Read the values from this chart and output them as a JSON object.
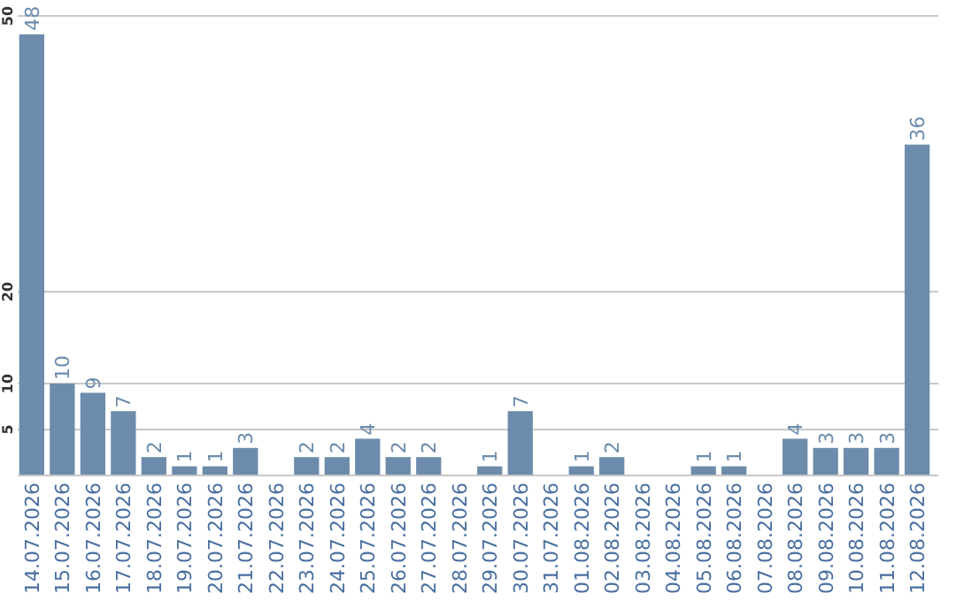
{
  "chart_data": {
    "type": "bar",
    "categories": [
      "14.07.2026",
      "15.07.2026",
      "16.07.2026",
      "17.07.2026",
      "18.07.2026",
      "19.07.2026",
      "20.07.2026",
      "21.07.2026",
      "22.07.2026",
      "23.07.2026",
      "24.07.2026",
      "25.07.2026",
      "26.07.2026",
      "27.07.2026",
      "28.07.2026",
      "29.07.2026",
      "30.07.2026",
      "31.07.2026",
      "01.08.2026",
      "02.08.2026",
      "03.08.2026",
      "04.08.2026",
      "05.08.2026",
      "06.08.2026",
      "07.08.2026",
      "08.08.2026",
      "09.08.2026",
      "10.08.2026",
      "11.08.2026",
      "12.08.2026"
    ],
    "values": [
      48,
      10,
      9,
      7,
      2,
      1,
      1,
      3,
      null,
      2,
      2,
      4,
      2,
      2,
      null,
      1,
      7,
      null,
      1,
      2,
      null,
      null,
      1,
      1,
      null,
      4,
      3,
      3,
      3,
      36
    ],
    "color": "#6d8cac",
    "ylim": [
      0,
      50
    ],
    "yticks": [
      5,
      10,
      20,
      50
    ],
    "grid": "y",
    "data_labels": true
  }
}
